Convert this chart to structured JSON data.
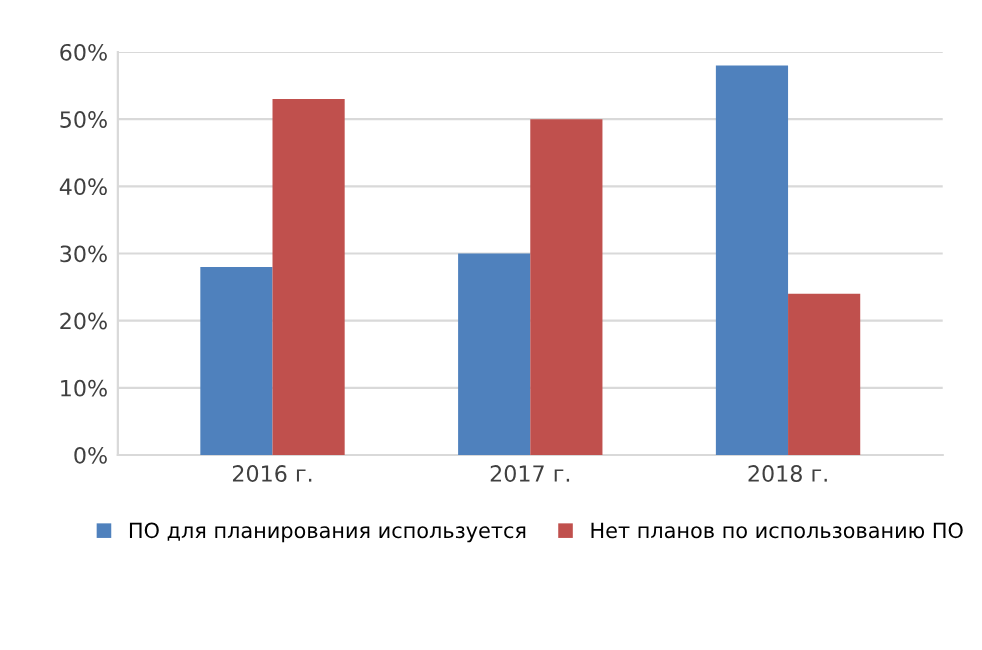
{
  "chart_data": {
    "type": "bar",
    "categories": [
      "2016 г.",
      "2017 г.",
      "2018 г."
    ],
    "series": [
      {
        "name": "ПО для планирования используется",
        "color": "#4f81bd",
        "values": [
          28,
          30,
          58
        ]
      },
      {
        "name": "Нет планов по использованию ПО",
        "color": "#c0504d",
        "values": [
          53,
          50,
          24
        ]
      }
    ],
    "ylim": [
      0,
      60
    ],
    "yticks": [
      {
        "value": 0,
        "label": "0%"
      },
      {
        "value": 10,
        "label": "10%"
      },
      {
        "value": 20,
        "label": "20%"
      },
      {
        "value": 30,
        "label": "30%"
      },
      {
        "value": 40,
        "label": "40%"
      },
      {
        "value": 50,
        "label": "50%"
      },
      {
        "value": 60,
        "label": "60%"
      }
    ],
    "grid": "y",
    "legend": "bottom"
  }
}
